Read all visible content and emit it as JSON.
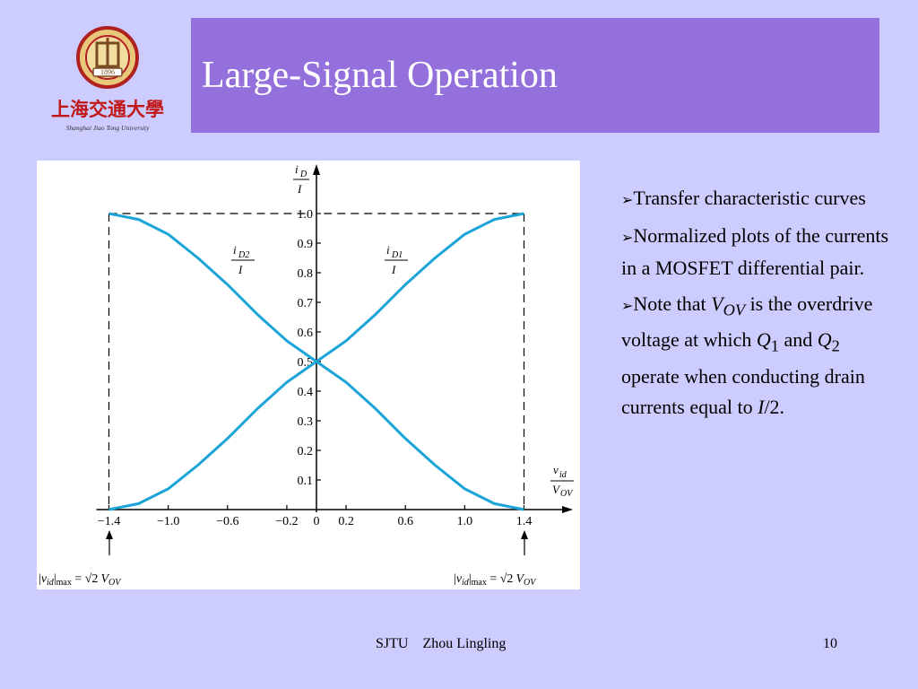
{
  "slide": {
    "title": "Large-Signal Operation",
    "footer_left": "SJTU    Zhou Lingling",
    "page_number": "10",
    "logo": {
      "year": "1896",
      "chinese": "上海交通大學",
      "pinyin": "Shanghai Jiao Tong University"
    },
    "bullets": [
      {
        "text": "Transfer characteristic curves"
      },
      {
        "text": "Normalized plots of the currents in a MOSFET differential pair."
      },
      {
        "p1": "Note that ",
        "v_main": "V",
        "v_sub": "OV",
        "p2": " is the overdrive voltage at which ",
        "q1_main": "Q",
        "q1_sub": "1",
        "p3": " and ",
        "q2_main": "Q",
        "q2_sub": "2",
        "p4": " operate when conducting drain currents equal to ",
        "i_main": "I",
        "p5": "/2."
      }
    ]
  },
  "chart_data": {
    "type": "line",
    "y_axis_label": {
      "num_main": "i",
      "num_sub": "D",
      "den": "I"
    },
    "x_axis_label": {
      "num_main": "v",
      "num_sub": "id",
      "den_main": "V",
      "den_sub": "OV"
    },
    "xlim": [
      -1.4,
      1.4
    ],
    "ylim": [
      0,
      1.0
    ],
    "x_ticks": [
      {
        "value": -1.4,
        "label": "−1.4"
      },
      {
        "value": -1.0,
        "label": "−1.0"
      },
      {
        "value": -0.6,
        "label": "−0.6"
      },
      {
        "value": -0.2,
        "label": "−0.2"
      },
      {
        "value": 0,
        "label": "0"
      },
      {
        "value": 0.2,
        "label": "0.2"
      },
      {
        "value": 0.6,
        "label": "0.6"
      },
      {
        "value": 1.0,
        "label": "1.0"
      },
      {
        "value": 1.4,
        "label": "1.4"
      }
    ],
    "y_ticks": [
      {
        "value": 0.1,
        "label": "0.1"
      },
      {
        "value": 0.2,
        "label": "0.2"
      },
      {
        "value": 0.3,
        "label": "0.3"
      },
      {
        "value": 0.4,
        "label": "0.4"
      },
      {
        "value": 0.5,
        "label": "0.5"
      },
      {
        "value": 0.6,
        "label": "0.6"
      },
      {
        "value": 0.7,
        "label": "0.7"
      },
      {
        "value": 0.8,
        "label": "0.8"
      },
      {
        "value": 0.9,
        "label": "0.9"
      },
      {
        "value": 1.0,
        "label": "1.0"
      }
    ],
    "series": [
      {
        "id": "iD1",
        "label_main": "i",
        "label_sub": "D1",
        "label_den": "I",
        "color": "#1ba4d8",
        "x": [
          -1.4,
          -1.2,
          -1.0,
          -0.8,
          -0.6,
          -0.4,
          -0.2,
          0,
          0.2,
          0.4,
          0.6,
          0.8,
          1.0,
          1.2,
          1.4
        ],
        "y": [
          0.0,
          0.02,
          0.07,
          0.15,
          0.24,
          0.34,
          0.43,
          0.5,
          0.57,
          0.66,
          0.76,
          0.85,
          0.93,
          0.98,
          1.0
        ]
      },
      {
        "id": "iD2",
        "label_main": "i",
        "label_sub": "D2",
        "label_den": "I",
        "color": "#1ba4d8",
        "x": [
          -1.4,
          -1.2,
          -1.0,
          -0.8,
          -0.6,
          -0.4,
          -0.2,
          0,
          0.2,
          0.4,
          0.6,
          0.8,
          1.0,
          1.2,
          1.4
        ],
        "y": [
          1.0,
          0.98,
          0.93,
          0.85,
          0.76,
          0.66,
          0.57,
          0.5,
          0.43,
          0.34,
          0.24,
          0.15,
          0.07,
          0.02,
          0.0
        ]
      }
    ],
    "annotations": [
      {
        "side": "left",
        "x": -1.4,
        "pre": "|",
        "v_main": "v",
        "v_sub": "id",
        "mid": "|",
        "max": "max",
        "eq": " = ",
        "sqrt": "√2",
        "vov_main": "V",
        "vov_sub": "OV"
      },
      {
        "side": "right",
        "x": 1.4,
        "pre": "|",
        "v_main": "v",
        "v_sub": "id",
        "mid": "|",
        "max": "max",
        "eq": " = ",
        "sqrt": "√2",
        "vov_main": "V",
        "vov_sub": "OV"
      }
    ],
    "grid": false,
    "dashed_guides": true
  }
}
